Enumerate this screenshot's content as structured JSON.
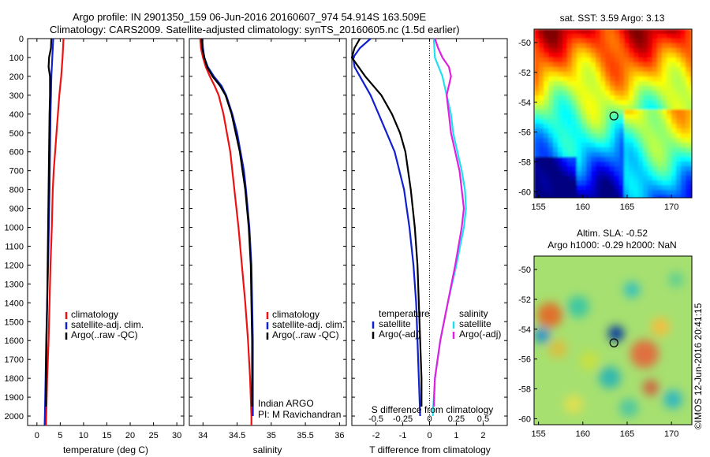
{
  "header": {
    "line1": "Argo profile: IN 2901350_159 06-Jun-2016 20160607_974 54.914S 163.509E",
    "line2": "Climatology: CARS2009. Satellite-adjusted climatology: synTS_20160605.nc (1.5d earlier)"
  },
  "credit": "©IMOS 12-Jun-2016 20:41:15",
  "colors": {
    "climatology": "#ee1111",
    "satellite": "#1020d0",
    "argo": "#000000",
    "argo_s": "#e020e0",
    "sat_s": "#20e0f0"
  },
  "chart_data": [
    {
      "type": "line",
      "id": "temperature",
      "xlabel": "temperature (deg C)",
      "xticks": [
        0,
        5,
        10,
        15,
        20,
        25,
        30
      ],
      "xlim": [
        -2,
        31.5
      ],
      "ylim": [
        0,
        2050
      ],
      "yticks": [
        0,
        100,
        200,
        300,
        400,
        500,
        600,
        700,
        800,
        900,
        1000,
        1100,
        1200,
        1300,
        1400,
        1500,
        1600,
        1700,
        1800,
        1900,
        2000
      ],
      "legend": [
        "climatology",
        "satellite-adj. clim.",
        "Argo(..raw -QC)"
      ],
      "series": [
        {
          "name": "climatology",
          "color": "#ee1111",
          "depth": [
            0,
            100,
            200,
            300,
            400,
            500,
            600,
            700,
            800,
            900,
            1000,
            1200,
            1400,
            1600,
            1800,
            2000,
            2050
          ],
          "values": [
            5.7,
            5.5,
            5.2,
            4.8,
            4.5,
            4.2,
            3.9,
            3.6,
            3.4,
            3.3,
            3.2,
            2.9,
            2.7,
            2.5,
            2.2,
            2.0,
            1.95
          ]
        },
        {
          "name": "satellite-adj. clim.",
          "color": "#1020d0",
          "depth": [
            0,
            50,
            100,
            200,
            300,
            400,
            600,
            800,
            1000,
            1200,
            1400,
            1600,
            1800,
            2000,
            2050
          ],
          "values": [
            3.5,
            3.4,
            3.3,
            3.1,
            3.0,
            2.9,
            2.8,
            2.7,
            2.55,
            2.4,
            2.2,
            2.0,
            1.85,
            1.7,
            1.65
          ]
        },
        {
          "name": "Argo(..raw -QC)",
          "color": "#000000",
          "depth": [
            0,
            50,
            100,
            150,
            200,
            300,
            400,
            600,
            800,
            1000,
            1200,
            1400,
            1600,
            1800,
            1950
          ],
          "values": [
            3.1,
            3.0,
            2.6,
            2.5,
            2.8,
            2.8,
            2.7,
            2.6,
            2.5,
            2.4,
            2.3,
            2.2,
            2.05,
            1.95,
            1.9
          ]
        }
      ]
    },
    {
      "type": "line",
      "id": "salinity",
      "xlabel": "salinity",
      "xticks": [
        34,
        34.5,
        35,
        35.5,
        36
      ],
      "xlim": [
        33.8,
        36.1
      ],
      "ylim": [
        0,
        2050
      ],
      "legend": [
        "climatology",
        "satellite-adj. clim.",
        "Argo(..raw -QC)"
      ],
      "annotation": [
        "Indian ARGO",
        "PI: M Ravichandran"
      ],
      "series": [
        {
          "name": "climatology",
          "color": "#ee1111",
          "depth": [
            0,
            50,
            100,
            150,
            200,
            250,
            300,
            400,
            500,
            600,
            800,
            1000,
            1200,
            1400,
            1600,
            1800,
            2000,
            2050
          ],
          "values": [
            33.96,
            33.97,
            34.0,
            34.04,
            34.1,
            34.17,
            34.23,
            34.3,
            34.35,
            34.4,
            34.46,
            34.52,
            34.57,
            34.62,
            34.66,
            34.69,
            34.71,
            34.71
          ]
        },
        {
          "name": "satellite-adj. clim.",
          "color": "#1020d0",
          "depth": [
            0,
            50,
            100,
            150,
            200,
            250,
            300,
            400,
            500,
            600,
            700,
            800,
            1000,
            1200,
            1400,
            1600,
            1800,
            1950,
            2000
          ],
          "values": [
            33.99,
            34.0,
            34.02,
            34.07,
            34.16,
            34.27,
            34.34,
            34.43,
            34.5,
            34.55,
            34.6,
            34.63,
            34.68,
            34.71,
            34.72,
            34.73,
            34.73,
            34.73,
            34.73
          ]
        },
        {
          "name": "Argo(..raw -QC)",
          "color": "#000000",
          "depth": [
            0,
            50,
            100,
            150,
            200,
            250,
            300,
            400,
            500,
            600,
            800,
            1000,
            1200,
            1400,
            1600,
            1800,
            1950
          ],
          "values": [
            33.98,
            33.99,
            34.02,
            34.06,
            34.14,
            34.25,
            34.33,
            34.42,
            34.48,
            34.54,
            34.62,
            34.67,
            34.7,
            34.71,
            34.72,
            34.72,
            34.72
          ]
        }
      ]
    },
    {
      "type": "line",
      "id": "difference",
      "xlabel": "T difference from climatology",
      "x2label": "S difference from climatology",
      "xticks": [
        -2,
        -1,
        0,
        1,
        2
      ],
      "x2ticks": [
        -0.5,
        -0.25,
        0,
        0.25,
        0.5
      ],
      "xlim": [
        -2.9,
        2.9
      ],
      "ylim": [
        0,
        2050
      ],
      "legend_t": [
        "temperature",
        "satellite",
        "Argo(-adj)"
      ],
      "legend_s": [
        "salinity",
        "satellite",
        "Argo(-adj)"
      ],
      "series": [
        {
          "name": "T satellite",
          "color": "#1020d0",
          "depth": [
            0,
            50,
            100,
            150,
            200,
            300,
            400,
            500,
            600,
            800,
            1000,
            1200,
            1400,
            1600,
            1800,
            2000
          ],
          "values": [
            -2.2,
            -2.6,
            -2.85,
            -2.8,
            -2.6,
            -2.2,
            -1.9,
            -1.6,
            -1.3,
            -0.95,
            -0.75,
            -0.6,
            -0.5,
            -0.45,
            -0.4,
            -0.35
          ]
        },
        {
          "name": "T Argo(-adj)",
          "color": "#000000",
          "depth": [
            0,
            50,
            100,
            200,
            300,
            400,
            500,
            600,
            800,
            1000,
            1200,
            1400,
            1600,
            1800,
            1950
          ],
          "values": [
            -2.6,
            -2.8,
            -2.9,
            -2.4,
            -1.8,
            -1.4,
            -1.1,
            -0.9,
            -0.7,
            -0.55,
            -0.45,
            -0.4,
            -0.35,
            -0.3,
            -0.3
          ]
        },
        {
          "name": "S satellite",
          "color": "#20e0f0",
          "depth": [
            0,
            100,
            200,
            300,
            400,
            500,
            600,
            700,
            800,
            900,
            1000,
            1200,
            1400,
            1600,
            1800,
            2000
          ],
          "values": [
            0.04,
            0.05,
            0.12,
            0.16,
            0.2,
            0.22,
            0.26,
            0.3,
            0.33,
            0.34,
            0.32,
            0.25,
            0.17,
            0.1,
            0.05,
            0.03
          ]
        },
        {
          "name": "S Argo(-adj)",
          "color": "#e020e0",
          "depth": [
            0,
            50,
            100,
            150,
            200,
            300,
            400,
            500,
            600,
            700,
            800,
            900,
            1000,
            1200,
            1400,
            1600,
            1800,
            1950
          ],
          "values": [
            0.05,
            0.08,
            0.12,
            0.18,
            0.2,
            0.16,
            0.18,
            0.2,
            0.24,
            0.28,
            0.3,
            0.32,
            0.3,
            0.24,
            0.17,
            0.1,
            0.05,
            0.04
          ]
        }
      ]
    },
    {
      "type": "heatmap",
      "id": "sst-map",
      "title": "sat. SST: 3.59 Argo: 3.13",
      "xticks": [
        155,
        160,
        165,
        170
      ],
      "yticks": [
        -50,
        -52,
        -54,
        -56,
        -58,
        -60
      ],
      "xlim": [
        154.5,
        172.3
      ],
      "ylim": [
        -60.4,
        -49.1
      ],
      "marker": {
        "lon": 163.509,
        "lat": -54.914
      }
    },
    {
      "type": "heatmap",
      "id": "sla-map",
      "title": "Altim. SLA: -0.52",
      "subtitle": "Argo h1000: -0.29 h2000: NaN",
      "xticks": [
        155,
        160,
        165,
        170
      ],
      "yticks": [
        -50,
        -52,
        -54,
        -56,
        -58,
        -60
      ],
      "xlim": [
        154.5,
        172.3
      ],
      "ylim": [
        -60.4,
        -49.1
      ],
      "marker": {
        "lon": 163.509,
        "lat": -54.914
      }
    }
  ]
}
